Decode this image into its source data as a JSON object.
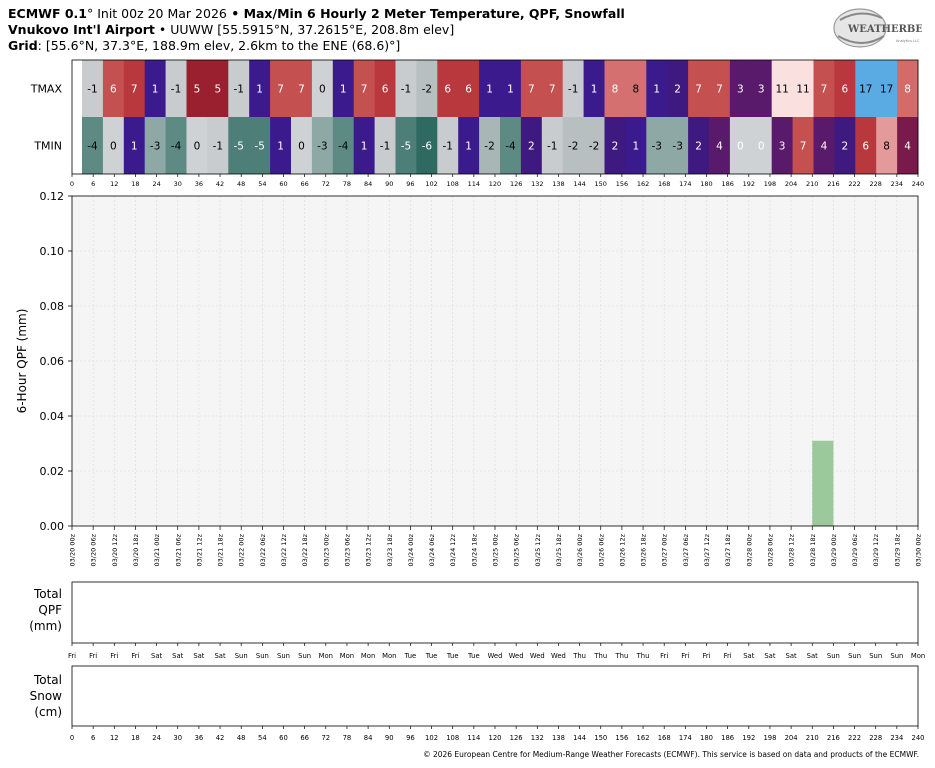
{
  "header": {
    "line1_model": "ECMWF 0.1",
    "line1_deg": "°",
    "line1_init": " Init 00z 20 Mar 2026",
    "line1_bullet": " • ",
    "line1_product": "Max/Min 6 Hourly 2 Meter Temperature,  QPF,  Snowfall",
    "line2_station": "Vnukovo Int'l Airport",
    "line2_bullet": " • ",
    "line2_info": "UUWW [55.5915°N, 37.2615°E, 208.8m elev]",
    "line3_label": "Grid",
    "line3_info": ": [55.6°N, 37.3°E, 188.9m elev, 2.6km to the ENE (68.6)°]"
  },
  "logo": {
    "text": "WEATHERBELL",
    "subtext": "Analytics LLC"
  },
  "copyright": "© 2026 European Centre for Medium-Range Weather Forecasts (ECMWF). This service is based on data and products of the ECMWF.",
  "chart_data": [
    {
      "type": "heatmap",
      "rows": [
        "TMAX",
        "TMIN"
      ],
      "forecast_hours": [
        0,
        6,
        12,
        18,
        24,
        30,
        36,
        42,
        48,
        54,
        60,
        66,
        72,
        78,
        84,
        90,
        96,
        102,
        108,
        114,
        120,
        126,
        132,
        138,
        144,
        150,
        156,
        162,
        168,
        174,
        180,
        186,
        192,
        198,
        204,
        210,
        216,
        222,
        228,
        234,
        240
      ],
      "tmax": [
        -1,
        6,
        7,
        1,
        -1,
        5,
        5,
        -1,
        1,
        7,
        7,
        0,
        1,
        7,
        6,
        -1,
        -2,
        6,
        6,
        1,
        1,
        7,
        7,
        -1,
        1,
        8,
        8,
        1,
        2,
        7,
        7,
        3,
        3,
        11,
        11,
        7,
        6,
        17,
        17,
        8
      ],
      "tmin": [
        -4,
        0,
        1,
        -3,
        -4,
        0,
        -1,
        -5,
        -5,
        1,
        0,
        -3,
        -4,
        1,
        -1,
        -5,
        -6,
        -1,
        1,
        -2,
        -4,
        2,
        -1,
        -2,
        -2,
        2,
        1,
        -3,
        -3,
        2,
        4,
        0,
        0,
        3,
        7,
        4,
        2,
        6,
        8,
        4
      ],
      "tmax_colors": [
        "#c8ccce",
        "#c45050",
        "#b8383e",
        "#3a1a8c",
        "#c8ccce",
        "#9a2030",
        "#9a2030",
        "#c8ccce",
        "#3a1a8c",
        "#c45050",
        "#c45050",
        "#ced2d4",
        "#3a1a8c",
        "#c45050",
        "#b8383e",
        "#c8ccce",
        "#b8bfc1",
        "#b8383e",
        "#b8383e",
        "#3a1a8c",
        "#3a1a8c",
        "#c45050",
        "#c45050",
        "#c8ccce",
        "#3a1a8c",
        "#d47070",
        "#d47070",
        "#3a1a8c",
        "#3e1a80",
        "#c45050",
        "#c45050",
        "#5a1a6c",
        "#5a1a6c",
        "#fbe0e0",
        "#fbe0e0",
        "#c45050",
        "#b8383e",
        "#5aaae4",
        "#5aaae4",
        "#d46a6a"
      ],
      "tmin_colors": [
        "#5e8a84",
        "#ced2d4",
        "#3a1a8c",
        "#8ea8a6",
        "#5e8a84",
        "#ced2d4",
        "#c8ccce",
        "#4e7e78",
        "#4e7e78",
        "#3a1a8c",
        "#ced2d4",
        "#8ea8a6",
        "#5e8a84",
        "#3a1a8c",
        "#c8ccce",
        "#4e7e78",
        "#2e6a62",
        "#c8ccce",
        "#3a1a8c",
        "#a8b6b6",
        "#5e8a84",
        "#3e1a80",
        "#c8ccce",
        "#b8bfc1",
        "#b8bfc1",
        "#3e1a80",
        "#3a1a8c",
        "#8ea8a6",
        "#8ea8a6",
        "#3e1a80",
        "#5a1a6c",
        "#ced2d4",
        "#ced2d4",
        "#5a1a6c",
        "#c45050",
        "#5a1a6c",
        "#3e1a80",
        "#b8383e",
        "#e49a9a",
        "#7a1a4a"
      ],
      "tmax_textcolors": [
        "#000",
        "#fff",
        "#fff",
        "#fff",
        "#000",
        "#fff",
        "#fff",
        "#000",
        "#fff",
        "#fff",
        "#fff",
        "#000",
        "#fff",
        "#fff",
        "#fff",
        "#000",
        "#000",
        "#fff",
        "#fff",
        "#fff",
        "#fff",
        "#fff",
        "#fff",
        "#000",
        "#fff",
        "#fff",
        "#000",
        "#fff",
        "#fff",
        "#fff",
        "#fff",
        "#fff",
        "#fff",
        "#000",
        "#000",
        "#fff",
        "#fff",
        "#000",
        "#000",
        "#fff"
      ],
      "tmin_textcolors": [
        "#000",
        "#000",
        "#fff",
        "#000",
        "#000",
        "#000",
        "#000",
        "#fff",
        "#fff",
        "#fff",
        "#000",
        "#000",
        "#000",
        "#fff",
        "#000",
        "#fff",
        "#fff",
        "#000",
        "#fff",
        "#000",
        "#000",
        "#fff",
        "#000",
        "#000",
        "#000",
        "#fff",
        "#fff",
        "#000",
        "#000",
        "#fff",
        "#fff",
        "#fff",
        "#fff",
        "#fff",
        "#fff",
        "#fff",
        "#fff",
        "#fff",
        "#000",
        "#fff"
      ]
    },
    {
      "type": "bar",
      "ylabel": "6-Hour QPF (mm)",
      "ylim": [
        0,
        0.12
      ],
      "yticks": [
        "0.00",
        "0.02",
        "0.04",
        "0.06",
        "0.08",
        "0.10",
        "0.12"
      ],
      "x": [
        "03/20 00z",
        "03/20 06z",
        "03/20 12z",
        "03/20 18z",
        "03/21 00z",
        "03/21 06z",
        "03/21 12z",
        "03/21 18z",
        "03/22 00z",
        "03/22 06z",
        "03/22 12z",
        "03/22 18z",
        "03/23 00z",
        "03/23 06z",
        "03/23 12z",
        "03/23 18z",
        "03/24 00z",
        "03/24 06z",
        "03/24 12z",
        "03/24 18z",
        "03/25 00z",
        "03/25 06z",
        "03/25 12z",
        "03/25 18z",
        "03/26 00z",
        "03/26 06z",
        "03/26 12z",
        "03/26 18z",
        "03/27 00z",
        "03/27 06z",
        "03/27 12z",
        "03/27 18z",
        "03/28 00z",
        "03/28 06z",
        "03/28 12z",
        "03/28 18z",
        "03/29 00z",
        "03/29 06z",
        "03/29 12z",
        "03/29 18z",
        "03/30 00z"
      ],
      "bars": [
        {
          "x_start": "03/28 18z",
          "x_end": "03/29 00z",
          "value": 0.031
        }
      ],
      "bar_color": "#9bc99b",
      "grid": true
    },
    {
      "type": "area",
      "ylabel_lines": [
        "Total",
        "QPF",
        "(mm)"
      ],
      "values": [],
      "day_labels": [
        "Fri",
        "Fri",
        "Fri",
        "Fri",
        "Sat",
        "Sat",
        "Sat",
        "Sat",
        "Sun",
        "Sun",
        "Sun",
        "Sun",
        "Mon",
        "Mon",
        "Mon",
        "Mon",
        "Tue",
        "Tue",
        "Tue",
        "Tue",
        "Wed",
        "Wed",
        "Wed",
        "Wed",
        "Thu",
        "Thu",
        "Thu",
        "Thu",
        "Fri",
        "Fri",
        "Fri",
        "Fri",
        "Sat",
        "Sat",
        "Sat",
        "Sat",
        "Sun",
        "Sun",
        "Sun",
        "Sun",
        "Mon"
      ]
    },
    {
      "type": "area",
      "ylabel_lines": [
        "Total",
        "Snow",
        "(cm)"
      ],
      "values": [],
      "hour_labels": [
        0,
        6,
        12,
        18,
        24,
        30,
        36,
        42,
        48,
        54,
        60,
        66,
        72,
        78,
        84,
        90,
        96,
        102,
        108,
        114,
        120,
        126,
        132,
        138,
        144,
        150,
        156,
        162,
        168,
        174,
        180,
        186,
        192,
        198,
        204,
        210,
        216,
        222,
        228,
        234,
        240
      ]
    }
  ]
}
